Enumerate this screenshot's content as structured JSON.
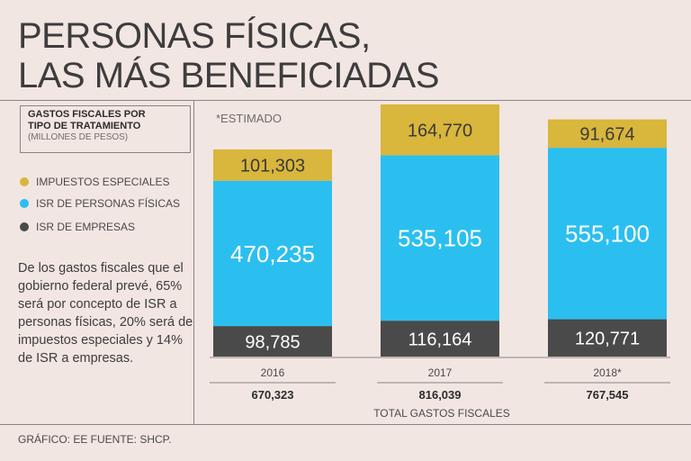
{
  "title": {
    "line1": "PERSONAS FÍSICAS,",
    "line2": "LAS MÁS BENEFICIADAS"
  },
  "box": {
    "heading_line1": "GASTOS FISCALES POR",
    "heading_line2": "TIPO DE TRATAMIENTO",
    "subheading": "(MILLONES DE PESOS)"
  },
  "note": "*ESTIMADO",
  "legend": [
    {
      "label": "IMPUESTOS ESPECIALES",
      "color": "#d9b63c"
    },
    {
      "label": "ISR DE PERSONAS FÍSICAS",
      "color": "#2bbff0"
    },
    {
      "label": "ISR DE EMPRESAS",
      "color": "#4a4a4a"
    }
  ],
  "paragraph": "De los gastos fiscales que el gobierno federal prevé, 65% será por concepto de ISR a personas físicas, 20% será de impuestos especiales y 14% de ISR a empresas.",
  "source": "GRÁFICO: EE  FUENTE: SHCP.",
  "chart_data": {
    "type": "bar",
    "stacked": true,
    "categories": [
      "2016",
      "2017",
      "2018*"
    ],
    "series": [
      {
        "name": "ISR DE EMPRESAS",
        "color": "#4a4a4a",
        "values": [
          98785,
          116164,
          120771
        ],
        "labels": [
          "98,785",
          "116,164",
          "120,771"
        ]
      },
      {
        "name": "ISR DE PERSONAS FÍSICAS",
        "color": "#2bbff0",
        "values": [
          470235,
          535105,
          555100
        ],
        "labels": [
          "470,235",
          "535,105",
          "555,100"
        ]
      },
      {
        "name": "IMPUESTOS ESPECIALES",
        "color": "#d9b63c",
        "values": [
          101303,
          164770,
          91674
        ],
        "labels": [
          "101,303",
          "164,770",
          "91,674"
        ]
      }
    ],
    "totals": [
      "670,323",
      "816,039",
      "767,545"
    ],
    "totals_label": "TOTAL GASTOS FISCALES",
    "ylim": [
      0,
      816039
    ]
  }
}
